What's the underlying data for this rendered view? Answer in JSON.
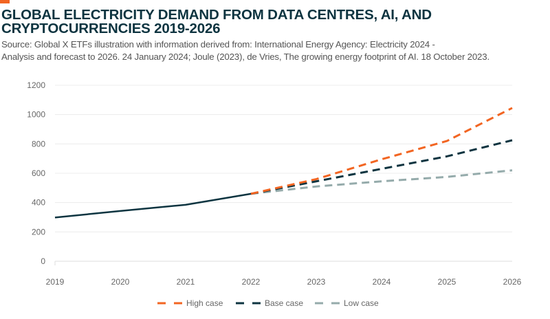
{
  "title_line1": "GLOBAL ELECTRICITY DEMAND FROM DATA CENTRES, AI, AND",
  "title_line2": "CRYPTOCURRENCIES 2019-2026",
  "source_line1": "Source: Global X ETFs illustration with information derived from: International Energy Agency: Electricity 2024 -",
  "source_line2": "Analysis and forecast to 2026. 24 January 2024; Joule (2023), de Vries, The growing energy footprint of AI. 18 October 2023.",
  "colors": {
    "accent": "#f26522",
    "historical": "#0d3440",
    "high": "#f26522",
    "base": "#0d3440",
    "low": "#95abab"
  },
  "chart_data": {
    "type": "line",
    "title": "",
    "xlabel": "",
    "ylabel": "",
    "x": [
      "2019",
      "2020",
      "2021",
      "2022",
      "2023",
      "2024",
      "2025",
      "2026"
    ],
    "ylim": [
      0,
      1200
    ],
    "yticks": [
      0,
      200,
      400,
      600,
      800,
      1000,
      1200
    ],
    "grid": "horizontal",
    "legend_position": "bottom",
    "historical": {
      "x": [
        "2019",
        "2020",
        "2021",
        "2022"
      ],
      "values": [
        298,
        343,
        385,
        460
      ],
      "style": "solid"
    },
    "series": [
      {
        "name": "High case",
        "x": [
          "2022",
          "2023",
          "2024",
          "2025",
          "2026"
        ],
        "values": [
          460,
          560,
          695,
          820,
          1045
        ],
        "style": "dashed"
      },
      {
        "name": "Base case",
        "x": [
          "2022",
          "2023",
          "2024",
          "2025",
          "2026"
        ],
        "values": [
          460,
          545,
          630,
          715,
          825
        ],
        "style": "dashed"
      },
      {
        "name": "Low case",
        "x": [
          "2022",
          "2023",
          "2024",
          "2025",
          "2026"
        ],
        "values": [
          460,
          510,
          545,
          575,
          620
        ],
        "style": "dashed"
      }
    ]
  }
}
